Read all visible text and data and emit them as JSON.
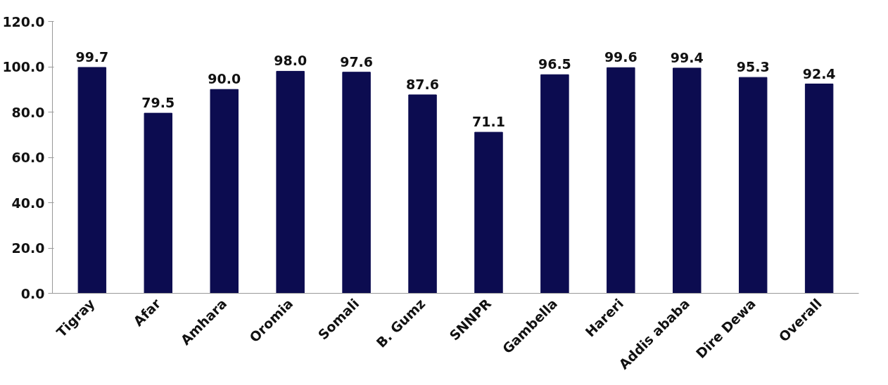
{
  "chart_data": {
    "type": "bar",
    "categories": [
      "Tigray",
      "Afar",
      "Amhara",
      "Oromia",
      "Somali",
      "B. Gumz",
      "SNNPR",
      "Gambella",
      "Hareri",
      "Addis ababa",
      "Dire Dewa",
      "Overall"
    ],
    "values": [
      99.7,
      79.5,
      90.0,
      98.0,
      97.6,
      87.6,
      71.1,
      96.5,
      99.6,
      99.4,
      95.3,
      92.4
    ],
    "value_labels": [
      "99.7",
      "79.5",
      "90.0",
      "98.0",
      "97.6",
      "87.6",
      "71.1",
      "96.5",
      "99.6",
      "99.4",
      "95.3",
      "92.4"
    ],
    "color": "#0c0c50",
    "ylim": [
      0,
      120
    ],
    "yticks": [
      {
        "value": 0,
        "label": "0.0"
      },
      {
        "value": 20,
        "label": "20.0"
      },
      {
        "value": 40,
        "label": "40.0"
      },
      {
        "value": 60,
        "label": "60.0"
      },
      {
        "value": 80,
        "label": "80.0"
      },
      {
        "value": 100,
        "label": "100.0"
      },
      {
        "value": 120,
        "label": "120.0"
      }
    ],
    "grid": false
  }
}
